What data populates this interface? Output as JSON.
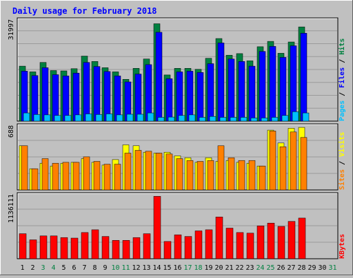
{
  "chart_data": {
    "type": "bar",
    "title": "Daily usage for February 2018",
    "categories": [
      "1",
      "2",
      "3",
      "4",
      "5",
      "6",
      "7",
      "8",
      "9",
      "10",
      "11",
      "12",
      "13",
      "14",
      "15",
      "16",
      "17",
      "18",
      "19",
      "20",
      "21",
      "22",
      "23",
      "24",
      "25",
      "26",
      "27",
      "28",
      "29",
      "30",
      "31"
    ],
    "weekend_days": [
      "3",
      "4",
      "10",
      "11",
      "17",
      "18",
      "24",
      "25",
      "31"
    ],
    "panels": [
      {
        "name": "hits-files-pages",
        "ymax_label": "31997",
        "ylim": [
          0,
          31997
        ],
        "right_label_parts": [
          {
            "text": "Pages",
            "color": "#00c0ff"
          },
          {
            "text": " / ",
            "color": "#000000"
          },
          {
            "text": "Files",
            "color": "#0000ff"
          },
          {
            "text": " / ",
            "color": "#000000"
          },
          {
            "text": "Hits",
            "color": "#008040"
          }
        ],
        "series": [
          {
            "name": "Hits",
            "color": "#008040",
            "values": [
              17500,
              15700,
              18700,
              16100,
              16000,
              16700,
              20700,
              19000,
              17000,
              15700,
              13300,
              16800,
              19800,
              31000,
              14700,
              16800,
              16800,
              16500,
              20000,
              26300,
              21000,
              21500,
              19200,
              23700,
              25400,
              21600,
              25200,
              30000,
              0,
              0,
              0
            ]
          },
          {
            "name": "Files",
            "color": "#0000ff",
            "values": [
              15900,
              14500,
              17000,
              14800,
              14400,
              15300,
              18700,
              17400,
              15800,
              14400,
              12500,
              15000,
              18000,
              28300,
              13500,
              15700,
              15900,
              15500,
              18300,
              24900,
              19800,
              19000,
              17500,
              22200,
              23800,
              20300,
              24000,
              28000,
              0,
              0,
              0
            ]
          },
          {
            "name": "Pages",
            "color": "#00c0ff",
            "values": [
              2600,
              2100,
              2000,
              1800,
              1800,
              2000,
              2300,
              2100,
              2300,
              2000,
              2200,
              2200,
              2600,
              1200,
              1300,
              1800,
              2000,
              1200,
              1500,
              1200,
              1200,
              1200,
              1000,
              1000,
              1200,
              1800,
              3000,
              2600,
              0,
              0,
              0
            ]
          }
        ]
      },
      {
        "name": "visits-sites",
        "ymax_label": "688",
        "ylim": [
          0,
          688
        ],
        "right_label_parts": [
          {
            "text": "Sites",
            "color": "#ff8000"
          },
          {
            "text": " / ",
            "color": "#000000"
          },
          {
            "text": "Visits",
            "color": "#ffff00"
          }
        ],
        "series": [
          {
            "name": "Visits",
            "color": "#ffff00",
            "values": [
              480,
              230,
              290,
              260,
              290,
              300,
              340,
              300,
              270,
              330,
              490,
              480,
              410,
              400,
              410,
              370,
              350,
              300,
              350,
              310,
              320,
              300,
              290,
              260,
              650,
              510,
              670,
              680,
              0,
              0,
              0
            ]
          },
          {
            "name": "Sites",
            "color": "#ff8000",
            "values": [
              480,
              230,
              340,
              290,
              300,
              300,
              360,
              310,
              280,
              280,
              400,
              430,
              420,
              400,
              390,
              340,
              320,
              310,
              320,
              480,
              350,
              320,
              320,
              260,
              640,
              470,
              630,
              570,
              0,
              0,
              0
            ]
          }
        ]
      },
      {
        "name": "kbytes",
        "ymax_label": "1136111",
        "ylim": [
          0,
          1136111
        ],
        "right_label_parts": [
          {
            "text": "KBytes",
            "color": "#ff0000"
          }
        ],
        "series": [
          {
            "name": "KBytes",
            "color": "#ff0000",
            "values": [
              450000,
              340000,
              410000,
              410000,
              380000,
              370000,
              470000,
              520000,
              400000,
              330000,
              330000,
              380000,
              450000,
              1120000,
              310000,
              430000,
              400000,
              500000,
              520000,
              750000,
              550000,
              470000,
              460000,
              590000,
              640000,
              580000,
              670000,
              730000,
              0,
              0,
              0
            ]
          }
        ]
      }
    ],
    "colors": {
      "background": "#c0c0c0",
      "title": "#0000ff",
      "weekday_label": "#000000",
      "weekend_label": "#008040",
      "axis_label": "#000000"
    }
  }
}
